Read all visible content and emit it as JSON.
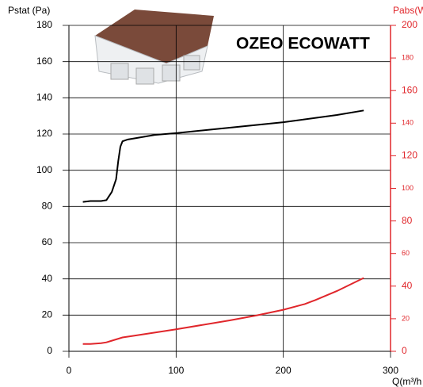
{
  "chart_data": {
    "type": "line",
    "title": "OZEO ECOWATT",
    "ylabel": "Pstat (Pa)",
    "y2label": "Pabs(W",
    "xlabel": "Q(m³/h",
    "xlim": [
      0,
      300
    ],
    "xticks": [
      0,
      100,
      200,
      300
    ],
    "ylim": [
      0,
      180
    ],
    "yticks": [
      0,
      20,
      40,
      60,
      80,
      100,
      120,
      140,
      160,
      180
    ],
    "y2lim": [
      0,
      200
    ],
    "y2ticks": [
      0,
      20,
      40,
      60,
      80,
      100,
      120,
      140,
      160,
      180,
      200
    ],
    "grid": true,
    "series": [
      {
        "name": "Pstat",
        "color": "#000000",
        "x": [
          13,
          20,
          25,
          30,
          35,
          40,
          44,
          46,
          48,
          50,
          55,
          60,
          80,
          100,
          150,
          200,
          250,
          275
        ],
        "values": [
          82.5,
          83,
          83,
          83,
          83.5,
          88,
          95,
          105,
          113,
          116,
          117,
          117.5,
          119.5,
          120.5,
          123.5,
          126.5,
          130.5,
          133
        ]
      },
      {
        "name": "Pabs",
        "color": "#e0262b",
        "axis": "y2",
        "x": [
          13,
          20,
          30,
          35,
          40,
          50,
          60,
          80,
          100,
          150,
          175,
          200,
          220,
          230,
          250,
          275
        ],
        "values": [
          4.5,
          4.5,
          5,
          5.5,
          6.5,
          8.5,
          9.5,
          11.5,
          13.5,
          19,
          22,
          25.5,
          29,
          31.5,
          37,
          45
        ]
      }
    ]
  }
}
